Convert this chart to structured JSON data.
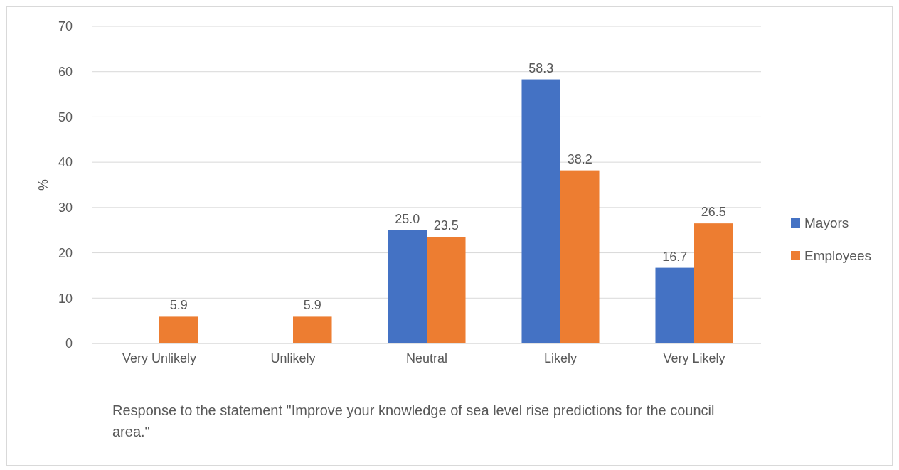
{
  "chart_data": {
    "type": "bar",
    "categories": [
      "Very Unlikely",
      "Unlikely",
      "Neutral",
      "Likely",
      "Very Likely"
    ],
    "series": [
      {
        "name": "Mayors",
        "color": "#4472c4",
        "values": [
          null,
          null,
          25.0,
          58.3,
          16.7
        ],
        "value_labels": [
          null,
          null,
          "25.0",
          "58.3",
          "16.7"
        ]
      },
      {
        "name": "Employees",
        "color": "#ed7d31",
        "values": [
          5.9,
          5.9,
          23.5,
          38.2,
          26.5
        ],
        "value_labels": [
          "5.9",
          "5.9",
          "23.5",
          "38.2",
          "26.5"
        ]
      }
    ],
    "ylabel": "%",
    "xlabel": "Response to the statement \"Improve your knowledge of sea level rise predictions for the council area.\"",
    "ylim": [
      0,
      70
    ],
    "yticks": [
      0,
      10,
      20,
      30,
      40,
      50,
      60,
      70
    ],
    "grid": "y",
    "legend": "right"
  }
}
